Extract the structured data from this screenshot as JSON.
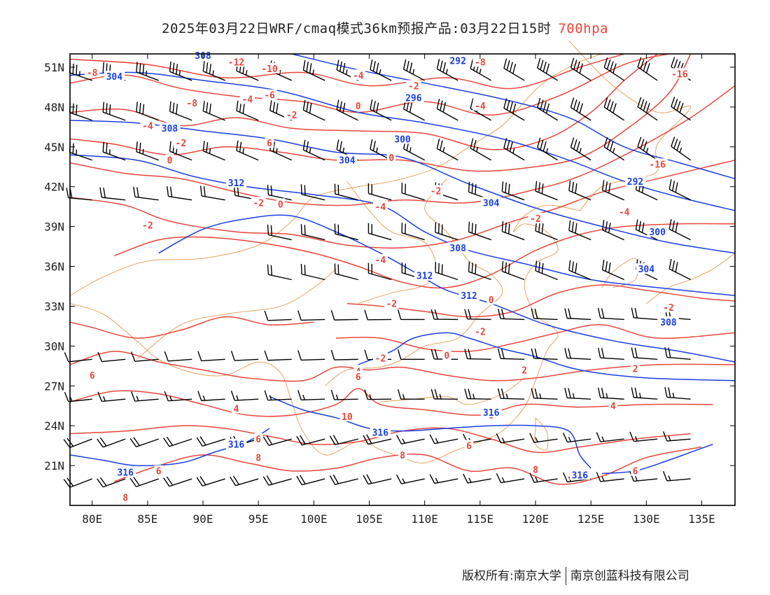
{
  "title": {
    "main": "2025年03月22日WRF/cmaq模式36km预报产品:03月22日15时",
    "level": "700hpa"
  },
  "axes": {
    "lat_labels": [
      "51N",
      "48N",
      "45N",
      "42N",
      "39N",
      "36N",
      "33N",
      "30N",
      "27N",
      "24N",
      "21N"
    ],
    "lat_values": [
      51,
      48,
      45,
      42,
      39,
      36,
      33,
      30,
      27,
      24,
      21
    ],
    "lon_labels": [
      "80E",
      "85E",
      "90E",
      "95E",
      "100E",
      "105E",
      "110E",
      "115E",
      "120E",
      "125E",
      "130E",
      "135E"
    ],
    "lon_values": [
      80,
      85,
      90,
      95,
      100,
      105,
      110,
      115,
      120,
      125,
      130,
      135
    ],
    "lat_range": [
      18,
      52
    ],
    "lon_range": [
      78,
      138
    ]
  },
  "colors": {
    "height_contour": "#1a3fe0",
    "temperature_contour": "#e8463c",
    "border": "#e39a50",
    "wind_barb": "#000000",
    "frame": "#000000"
  },
  "height_labels": [
    {
      "text": "308",
      "lon": 90,
      "lat": 51.8
    },
    {
      "text": "304",
      "lon": 82,
      "lat": 50.2
    },
    {
      "text": "292",
      "lon": 113,
      "lat": 51.4
    },
    {
      "text": "296",
      "lon": 109,
      "lat": 48.6
    },
    {
      "text": "308",
      "lon": 87,
      "lat": 46.3
    },
    {
      "text": "300",
      "lon": 108,
      "lat": 45.5
    },
    {
      "text": "304",
      "lon": 103,
      "lat": 43.9
    },
    {
      "text": "312",
      "lon": 93,
      "lat": 42.2
    },
    {
      "text": "292",
      "lon": 129,
      "lat": 42.3
    },
    {
      "text": "304",
      "lon": 116,
      "lat": 40.7
    },
    {
      "text": "300",
      "lon": 131,
      "lat": 38.5
    },
    {
      "text": "308",
      "lon": 113,
      "lat": 37.3
    },
    {
      "text": "304",
      "lon": 130,
      "lat": 35.7
    },
    {
      "text": "312",
      "lon": 110,
      "lat": 35.2
    },
    {
      "text": "312",
      "lon": 114,
      "lat": 33.7
    },
    {
      "text": "308",
      "lon": 132,
      "lat": 31.7
    },
    {
      "text": "316",
      "lon": 116,
      "lat": 24.9
    },
    {
      "text": "316",
      "lon": 106,
      "lat": 23.4
    },
    {
      "text": "316",
      "lon": 93,
      "lat": 22.5
    },
    {
      "text": "316",
      "lon": 83,
      "lat": 20.4
    },
    {
      "text": "316",
      "lon": 124,
      "lat": 20.2
    }
  ],
  "temp_labels": [
    {
      "text": "-12",
      "lon": 93,
      "lat": 51.3
    },
    {
      "text": "-10",
      "lon": 96,
      "lat": 50.8
    },
    {
      "text": "-8",
      "lon": 80,
      "lat": 50.5
    },
    {
      "text": "-8",
      "lon": 115,
      "lat": 51.3
    },
    {
      "text": "-4",
      "lon": 104,
      "lat": 50.3
    },
    {
      "text": "-16",
      "lon": 133,
      "lat": 50.4
    },
    {
      "text": "-6",
      "lon": 96,
      "lat": 48.8
    },
    {
      "text": "-8",
      "lon": 89,
      "lat": 48.2
    },
    {
      "text": "-4",
      "lon": 94,
      "lat": 48.5
    },
    {
      "text": "-2",
      "lon": 109,
      "lat": 49.5
    },
    {
      "text": "-2",
      "lon": 98,
      "lat": 47.3
    },
    {
      "text": "0",
      "lon": 104,
      "lat": 48.0
    },
    {
      "text": "-4",
      "lon": 115,
      "lat": 48.0
    },
    {
      "text": "-4",
      "lon": 85,
      "lat": 46.5
    },
    {
      "text": "-2",
      "lon": 88,
      "lat": 45.2
    },
    {
      "text": "6",
      "lon": 96,
      "lat": 45.2
    },
    {
      "text": "0",
      "lon": 87,
      "lat": 43.9
    },
    {
      "text": "0",
      "lon": 107,
      "lat": 44.1
    },
    {
      "text": "-16",
      "lon": 131,
      "lat": 43.6
    },
    {
      "text": "-2",
      "lon": 95,
      "lat": 40.7
    },
    {
      "text": "0",
      "lon": 97,
      "lat": 40.6
    },
    {
      "text": "-2",
      "lon": 111,
      "lat": 41.6
    },
    {
      "text": "-4",
      "lon": 106,
      "lat": 40.4
    },
    {
      "text": "-4",
      "lon": 128,
      "lat": 40.0
    },
    {
      "text": "-2",
      "lon": 120,
      "lat": 39.5
    },
    {
      "text": "-2",
      "lon": 85,
      "lat": 39.0
    },
    {
      "text": "-4",
      "lon": 106,
      "lat": 36.4
    },
    {
      "text": "0",
      "lon": 116,
      "lat": 33.4
    },
    {
      "text": "-2",
      "lon": 107,
      "lat": 33.1
    },
    {
      "text": "-2",
      "lon": 132,
      "lat": 32.8
    },
    {
      "text": "-2",
      "lon": 115,
      "lat": 31.0
    },
    {
      "text": "0",
      "lon": 112,
      "lat": 29.2
    },
    {
      "text": "-2",
      "lon": 106,
      "lat": 29.0
    },
    {
      "text": "4",
      "lon": 104,
      "lat": 28.0
    },
    {
      "text": "6",
      "lon": 104,
      "lat": 27.6
    },
    {
      "text": "2",
      "lon": 119,
      "lat": 28.1
    },
    {
      "text": "2",
      "lon": 129,
      "lat": 28.2
    },
    {
      "text": "6",
      "lon": 80,
      "lat": 27.7
    },
    {
      "text": "4",
      "lon": 93,
      "lat": 25.2
    },
    {
      "text": "4",
      "lon": 127,
      "lat": 25.4
    },
    {
      "text": "10",
      "lon": 103,
      "lat": 24.6
    },
    {
      "text": "6",
      "lon": 116,
      "lat": 24.7
    },
    {
      "text": "6",
      "lon": 114,
      "lat": 22.4
    },
    {
      "text": "6",
      "lon": 95,
      "lat": 22.9
    },
    {
      "text": "8",
      "lon": 95,
      "lat": 21.5
    },
    {
      "text": "8",
      "lon": 108,
      "lat": 21.7
    },
    {
      "text": "8",
      "lon": 120,
      "lat": 20.6
    },
    {
      "text": "6",
      "lon": 86,
      "lat": 20.5
    },
    {
      "text": "6",
      "lon": 129,
      "lat": 20.5
    },
    {
      "text": "8",
      "lon": 83,
      "lat": 18.5
    }
  ],
  "footer": {
    "copyright": "版权所有:南京大学",
    "company": "南京创蓝科技有限公司"
  }
}
